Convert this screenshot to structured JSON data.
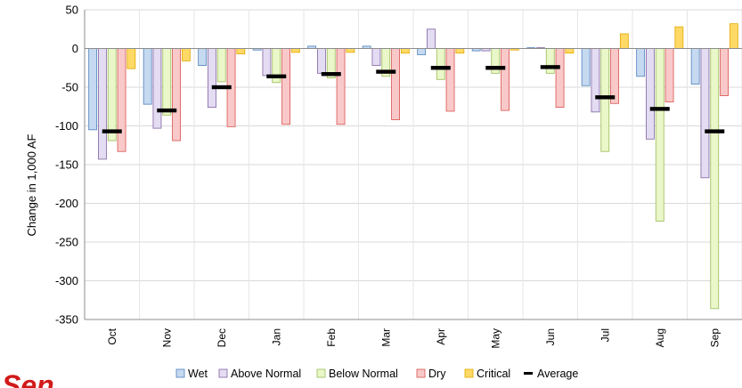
{
  "chart_data": {
    "type": "bar",
    "title": "",
    "ylabel": "Change in 1,000 AF",
    "xlabel": "",
    "ylim": [
      -350,
      50
    ],
    "yticks": [
      50,
      0,
      -50,
      -100,
      -150,
      -200,
      -250,
      -300,
      -350
    ],
    "categories": [
      "Oct",
      "Nov",
      "Dec",
      "Jan",
      "Feb",
      "Mar",
      "Apr",
      "May",
      "Jun",
      "Jul",
      "Aug",
      "Sep"
    ],
    "series": [
      {
        "name": "Wet",
        "color": "#c5d9f1",
        "stroke": "#4f81bd",
        "values": [
          -105,
          -72,
          -22,
          -2,
          3,
          3,
          -8,
          -3,
          1,
          -48,
          -36,
          -46
        ]
      },
      {
        "name": "Above Normal",
        "color": "#e4dcf2",
        "stroke": "#8064a2",
        "values": [
          -143,
          -103,
          -76,
          -35,
          -32,
          -22,
          25,
          -3,
          1,
          -82,
          -117,
          -167
        ]
      },
      {
        "name": "Below Normal",
        "color": "#eaf7c8",
        "stroke": "#9bbb59",
        "values": [
          -119,
          -86,
          -43,
          -44,
          -38,
          -36,
          -40,
          -32,
          -32,
          -133,
          -223,
          -336
        ]
      },
      {
        "name": "Dry",
        "color": "#f9c9c9",
        "stroke": "#d9534f",
        "values": [
          -133,
          -119,
          -101,
          -98,
          -98,
          -92,
          -81,
          -80,
          -76,
          -71,
          -69,
          -61
        ]
      },
      {
        "name": "Critical",
        "color": "#ffd966",
        "stroke": "#e0a800",
        "values": [
          -26,
          -16,
          -7,
          -5,
          -5,
          -6,
          -6,
          -2,
          -6,
          19,
          28,
          32
        ]
      }
    ],
    "average": {
      "name": "Average",
      "color": "#000000",
      "values": [
        -107,
        -80,
        -50,
        -36,
        -33,
        -30,
        -25,
        -25,
        -24,
        -63,
        -78,
        -107
      ]
    },
    "grid": true,
    "legend_position": "bottom"
  },
  "logo_text": "Sen"
}
